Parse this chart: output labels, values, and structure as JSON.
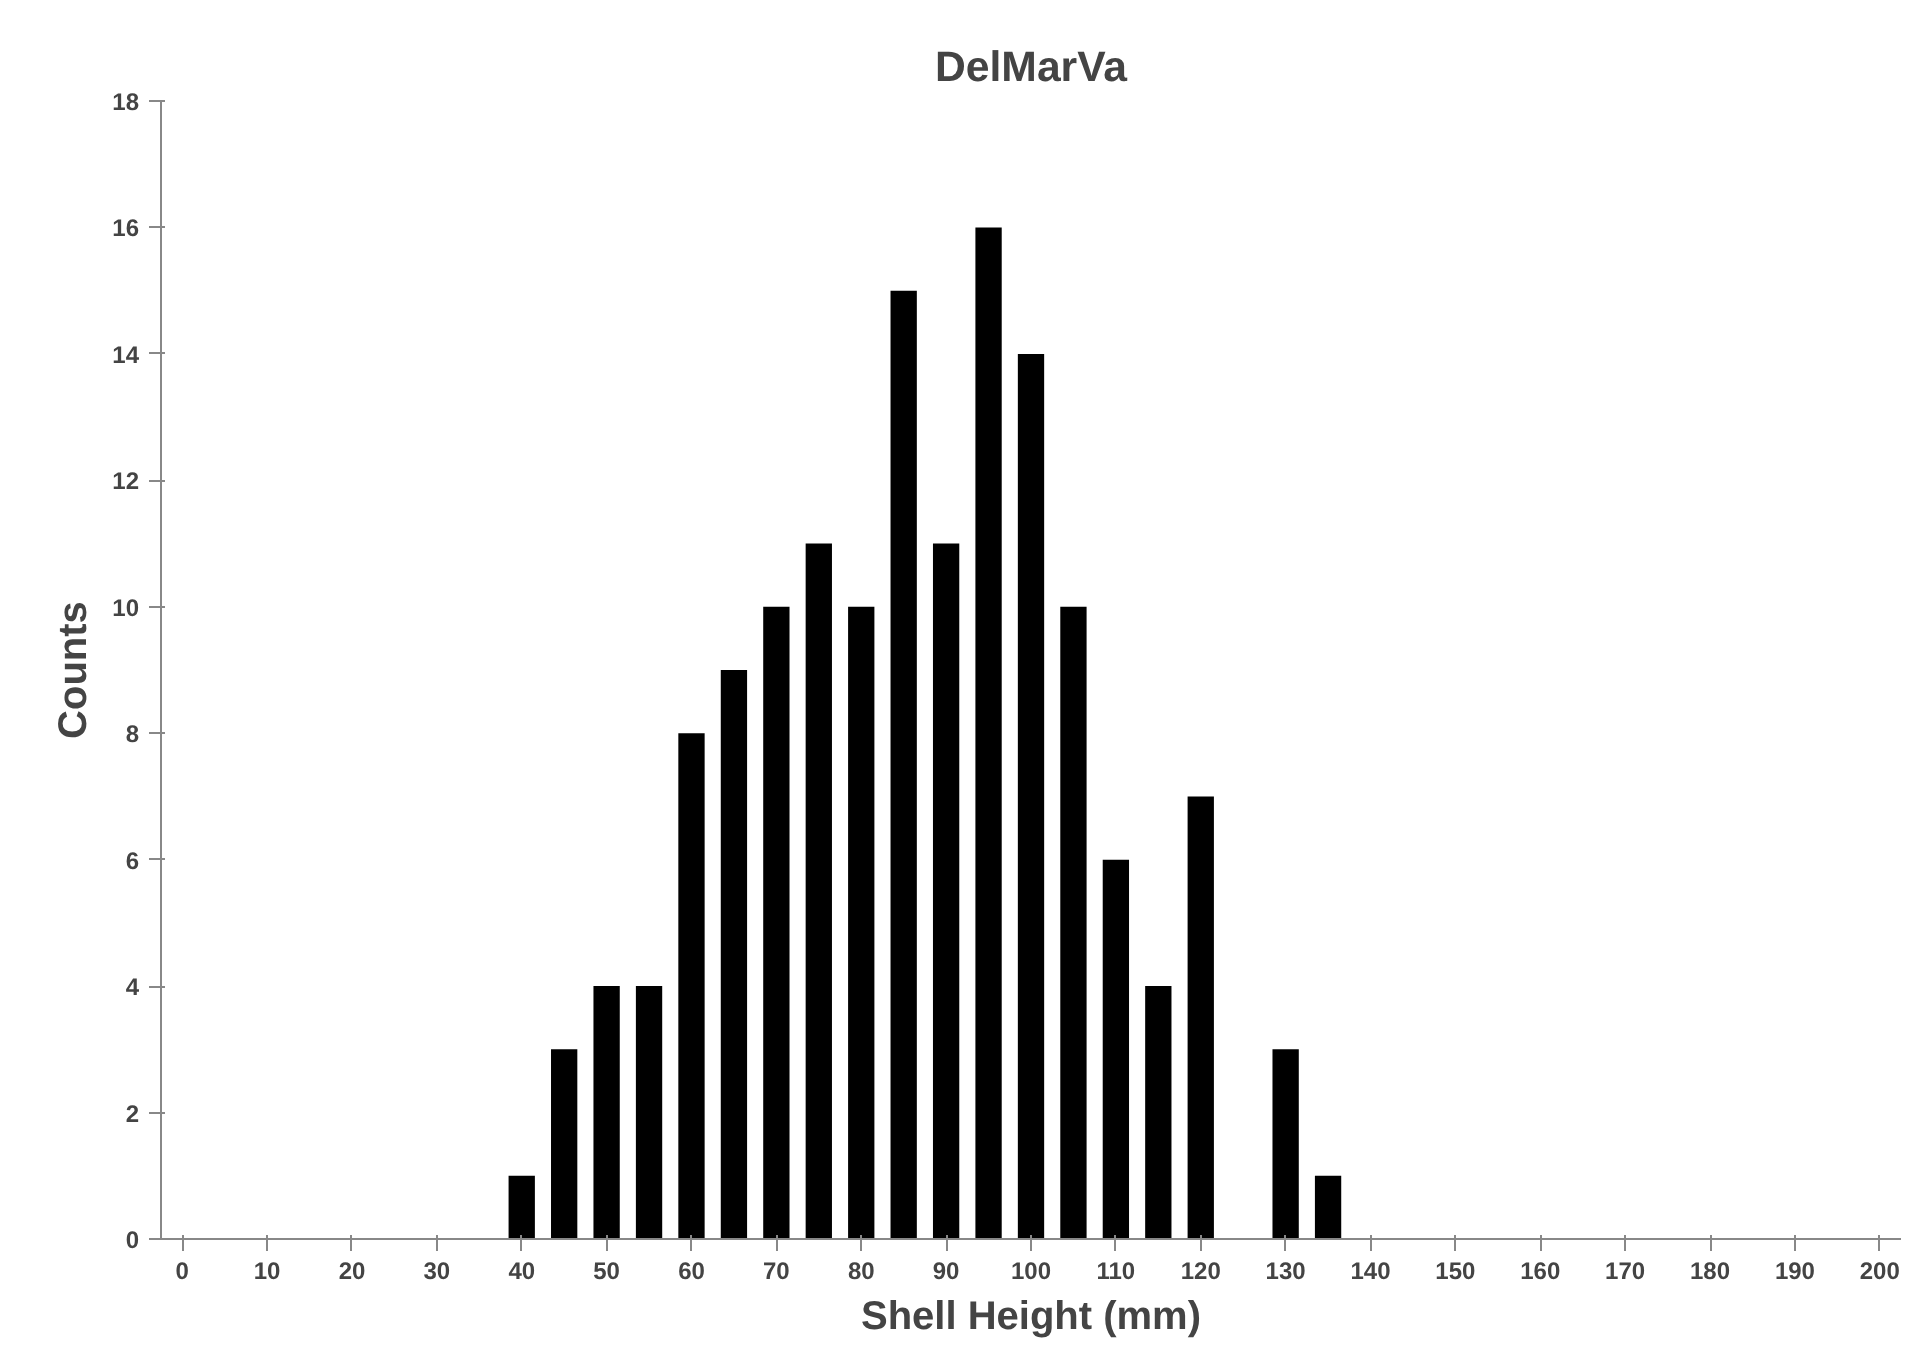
{
  "chart_data": {
    "type": "bar",
    "title": "DelMarVa",
    "xlabel": "Shell Height (mm)",
    "ylabel": "Counts",
    "categories": [
      "0",
      null,
      "10",
      null,
      "20",
      null,
      "30",
      null,
      "40",
      null,
      "50",
      null,
      "60",
      null,
      "70",
      null,
      "80",
      null,
      "90",
      null,
      "100",
      null,
      "110",
      null,
      "120",
      null,
      "130",
      null,
      "140",
      null,
      "150",
      null,
      "160",
      null,
      "170",
      null,
      "180",
      null,
      "190",
      null,
      "200"
    ],
    "values": [
      0,
      0,
      0,
      0,
      0,
      0,
      0,
      0,
      1,
      3,
      4,
      4,
      8,
      9,
      10,
      11,
      10,
      15,
      11,
      16,
      14,
      10,
      6,
      4,
      7,
      0,
      3,
      1,
      0,
      0,
      0,
      0,
      0,
      0,
      0,
      0,
      0,
      0,
      0,
      0,
      0
    ],
    "color": "#000000",
    "ylim": [
      0,
      18
    ],
    "yticks": [
      0,
      2,
      4,
      6,
      8,
      10,
      12,
      14,
      16,
      18
    ],
    "grid": false
  }
}
